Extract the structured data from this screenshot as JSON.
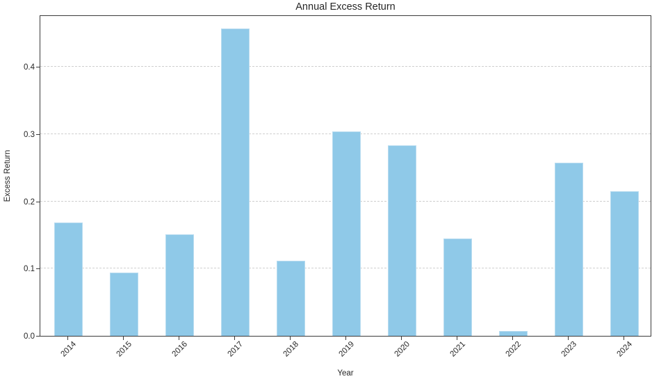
{
  "chart_data": {
    "type": "bar",
    "title": "Annual Excess Return",
    "xlabel": "Year",
    "ylabel": "Excess Return",
    "categories": [
      "2014",
      "2015",
      "2016",
      "2017",
      "2018",
      "2019",
      "2020",
      "2021",
      "2022",
      "2023",
      "2024"
    ],
    "values": [
      0.169,
      0.094,
      0.151,
      0.457,
      0.112,
      0.304,
      0.283,
      0.145,
      0.007,
      0.258,
      0.215
    ],
    "ytick_labels": [
      "0.0",
      "0.1",
      "0.2",
      "0.3",
      "0.4"
    ],
    "ytick_values": [
      0.0,
      0.1,
      0.2,
      0.3,
      0.4
    ],
    "ylim": [
      0,
      0.478
    ],
    "grid": "horizontal-dashed",
    "legend": "none",
    "colors": {
      "bar_fill": "#8fc9e8",
      "bar_edge": "#b9dcf0",
      "grid_line": "#cfcfcf",
      "axis_frame": "#3a3a3a",
      "text": "#262626",
      "background": "#ffffff"
    }
  }
}
